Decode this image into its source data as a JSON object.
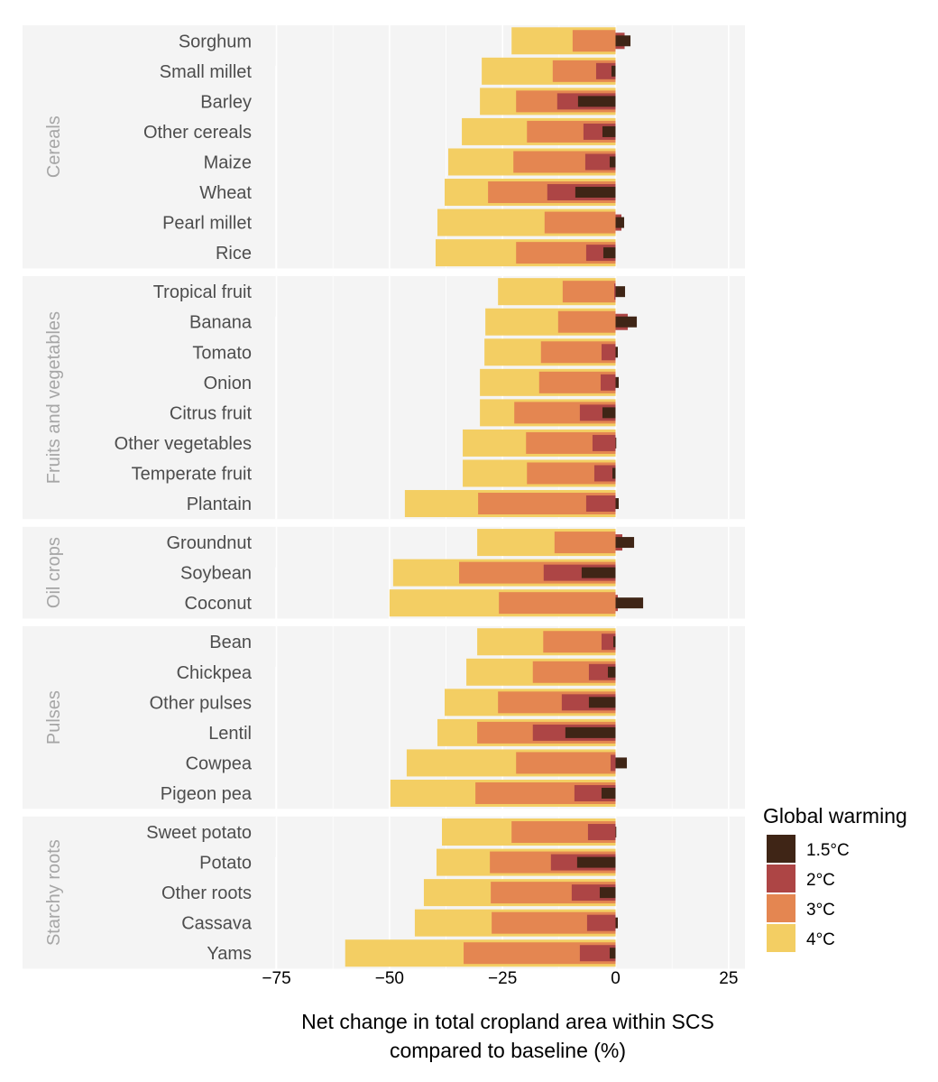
{
  "chart_data": {
    "type": "bar",
    "orientation": "horizontal",
    "layout": "overlapping nested bars, faceted by crop group",
    "title": "",
    "xlabel": "Net change in total cropland area within SCS compared to baseline (%)",
    "xlabel_lines": [
      "Net change in total cropland area within SCS",
      "compared to baseline (%)"
    ],
    "ylabel": "",
    "xlim": [
      -85,
      28
    ],
    "xticks": [
      -75,
      -50,
      -25,
      0,
      25
    ],
    "xtick_labels": [
      "−75",
      "−50",
      "−25",
      "0",
      "25"
    ],
    "grid": true,
    "legend": {
      "title": "Global warming",
      "placement": "right-bottom",
      "entries": [
        {
          "key": "w15",
          "label": "1.5°C",
          "color": "#3f2516"
        },
        {
          "key": "w2",
          "label": "2°C",
          "color": "#ad4545"
        },
        {
          "key": "w3",
          "label": "3°C",
          "color": "#e48651"
        },
        {
          "key": "w4",
          "label": "4°C",
          "color": "#f3ce63"
        }
      ]
    },
    "series_order_back_to_front": [
      "w4",
      "w3",
      "w2",
      "w15"
    ],
    "groups": [
      {
        "name": "Cereals",
        "crops": [
          {
            "name": "Sorghum",
            "w4": -23.0,
            "w3": -9.5,
            "w2": 2.0,
            "w15": 3.3
          },
          {
            "name": "Small millet",
            "w4": -29.6,
            "w3": -13.9,
            "w2": -4.3,
            "w15": -0.9
          },
          {
            "name": "Barley",
            "w4": -30.0,
            "w3": -22.0,
            "w2": -12.9,
            "w15": -8.3
          },
          {
            "name": "Other cereals",
            "w4": -34.0,
            "w3": -19.6,
            "w2": -7.1,
            "w15": -2.9
          },
          {
            "name": "Maize",
            "w4": -37.0,
            "w3": -22.6,
            "w2": -6.7,
            "w15": -1.3
          },
          {
            "name": "Wheat",
            "w4": -37.8,
            "w3": -28.2,
            "w2": -15.1,
            "w15": -8.9
          },
          {
            "name": "Pearl millet",
            "w4": -39.4,
            "w3": -15.7,
            "w2": 1.3,
            "w15": 1.9
          },
          {
            "name": "Rice",
            "w4": -39.8,
            "w3": -22.0,
            "w2": -6.5,
            "w15": -2.7
          }
        ]
      },
      {
        "name": "Fruits and vegetables",
        "crops": [
          {
            "name": "Tropical fruit",
            "w4": -26.0,
            "w3": -11.7,
            "w2": -0.3,
            "w15": 2.1
          },
          {
            "name": "Banana",
            "w4": -28.8,
            "w3": -12.7,
            "w2": 2.7,
            "w15": 4.7
          },
          {
            "name": "Tomato",
            "w4": -29.0,
            "w3": -16.5,
            "w2": -3.1,
            "w15": 0.5
          },
          {
            "name": "Onion",
            "w4": -30.0,
            "w3": -16.9,
            "w2": -3.3,
            "w15": 0.7
          },
          {
            "name": "Citrus fruit",
            "w4": -30.0,
            "w3": -22.4,
            "w2": -7.9,
            "w15": -2.9
          },
          {
            "name": "Other vegetables",
            "w4": -33.8,
            "w3": -19.8,
            "w2": -5.1,
            "w15": 0.0
          },
          {
            "name": "Temperate fruit",
            "w4": -33.8,
            "w3": -19.6,
            "w2": -4.7,
            "w15": -0.7
          },
          {
            "name": "Plantain",
            "w4": -46.6,
            "w3": -30.4,
            "w2": -6.5,
            "w15": 0.7
          }
        ]
      },
      {
        "name": "Oil crops",
        "crops": [
          {
            "name": "Groundnut",
            "w4": -30.6,
            "w3": -13.5,
            "w2": 1.5,
            "w15": 4.1
          },
          {
            "name": "Soybean",
            "w4": -49.2,
            "w3": -34.6,
            "w2": -15.9,
            "w15": -7.5
          },
          {
            "name": "Coconut",
            "w4": -50.0,
            "w3": -25.8,
            "w2": 0.5,
            "w15": 6.1
          }
        ]
      },
      {
        "name": "Pulses",
        "crops": [
          {
            "name": "Bean",
            "w4": -30.6,
            "w3": -16.0,
            "w2": -3.1,
            "w15": -0.5
          },
          {
            "name": "Chickpea",
            "w4": -33.0,
            "w3": -18.3,
            "w2": -5.9,
            "w15": -1.7
          },
          {
            "name": "Other pulses",
            "w4": -37.8,
            "w3": -26.0,
            "w2": -11.9,
            "w15": -5.9
          },
          {
            "name": "Lentil",
            "w4": -39.4,
            "w3": -30.6,
            "w2": -18.3,
            "w15": -11.1
          },
          {
            "name": "Cowpea",
            "w4": -46.2,
            "w3": -22.0,
            "w2": -1.1,
            "w15": 2.5
          },
          {
            "name": "Pigeon pea",
            "w4": -49.8,
            "w3": -31.0,
            "w2": -9.1,
            "w15": -3.1
          }
        ]
      },
      {
        "name": "Starchy roots",
        "crops": [
          {
            "name": "Sweet potato",
            "w4": -38.4,
            "w3": -23.0,
            "w2": -6.1,
            "w15": 0.0
          },
          {
            "name": "Potato",
            "w4": -39.6,
            "w3": -27.8,
            "w2": -14.3,
            "w15": -8.5
          },
          {
            "name": "Other roots",
            "w4": -42.4,
            "w3": -27.6,
            "w2": -9.7,
            "w15": -3.5
          },
          {
            "name": "Cassava",
            "w4": -44.4,
            "w3": -27.4,
            "w2": -6.3,
            "w15": 0.5
          },
          {
            "name": "Yams",
            "w4": -59.8,
            "w3": -33.6,
            "w2": -7.9,
            "w15": -1.3
          }
        ]
      }
    ]
  },
  "colors": {
    "panel_background": "#f4f4f4",
    "gridline": "#ffffff",
    "crop_label": "#4d4d4d",
    "facet_label": "#a6a6a6"
  }
}
